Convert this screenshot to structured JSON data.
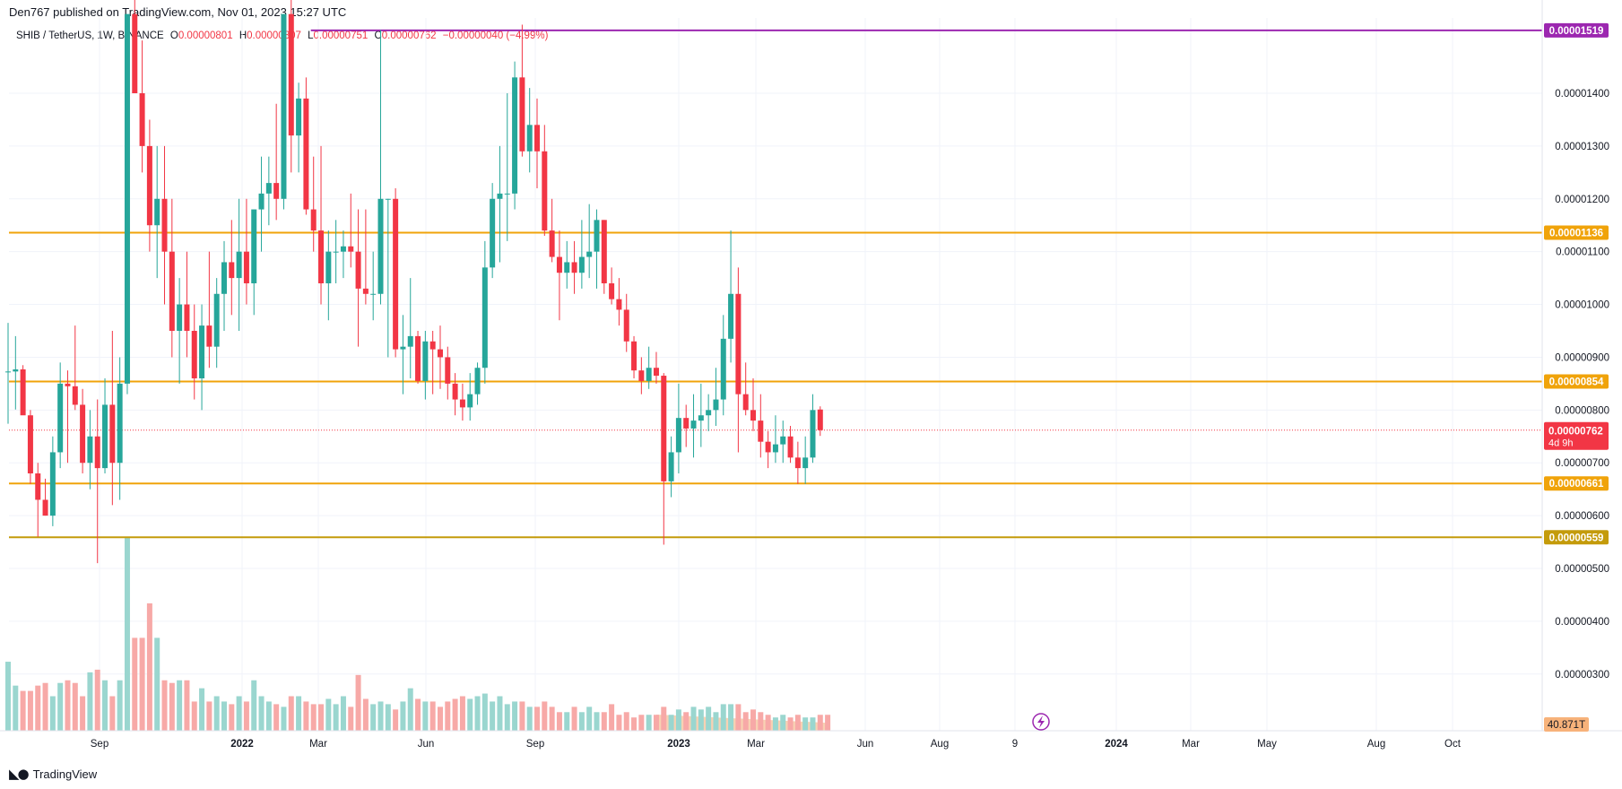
{
  "publisher_line": "Den767 published on TradingView.com, Nov 01, 2023 15:27 UTC",
  "footer": {
    "brand": "TradingView"
  },
  "legend": {
    "symbol": "SHIB / TetherUS, 1W, BINANCE",
    "o_label": "O",
    "o": "0.00000801",
    "h_label": "H",
    "h": "0.00000807",
    "l_label": "L",
    "l": "0.00000751",
    "c_label": "C",
    "c": "0.00000762",
    "change": "−0.00000040 (−4.99%)"
  },
  "colors": {
    "up": "#26a69a",
    "down": "#f23645",
    "volume_up": "#9ad6cf",
    "volume_down": "#f7a9a7",
    "level_orange": "#f0a30a",
    "level_gold": "#c49b0b",
    "level_purple": "#9c27b0",
    "price_tag": "#f23645",
    "grid": "#f0f3fa"
  },
  "chart_data": {
    "type": "candlestick",
    "timeframe": "1W",
    "price_axis": {
      "ylim": [
        2.3e-06,
        1.55e-05
      ],
      "ticks": [
        "0.00001400",
        "0.00001300",
        "0.00001200",
        "0.00001100",
        "0.00001000",
        "0.00000900",
        "0.00000800",
        "0.00000700",
        "0.00000600",
        "0.00000500",
        "0.00000400",
        "0.00000300"
      ]
    },
    "time_axis": {
      "ticks": [
        "Sep",
        "2022",
        "Mar",
        "Jun",
        "Sep",
        "2023",
        "Mar",
        "Jun",
        "Aug",
        "9",
        "2024",
        "Mar",
        "May",
        "Aug",
        "Oct"
      ],
      "bold_ticks": [
        "2022",
        "2023",
        "2024"
      ]
    },
    "horizontal_levels": [
      {
        "value": 1.519e-05,
        "label": "0.00001519",
        "color": "purple",
        "start_week": 41
      },
      {
        "value": 1.136e-05,
        "label": "0.00001136",
        "color": "orange"
      },
      {
        "value": 8.54e-06,
        "label": "0.00000854",
        "color": "orange"
      },
      {
        "value": 6.61e-06,
        "label": "0.00000661",
        "color": "orange"
      },
      {
        "value": 5.59e-06,
        "label": "0.00000559",
        "color": "gold"
      }
    ],
    "current_price": {
      "value": 7.62e-06,
      "label": "0.00000762",
      "countdown": "4d 9h"
    },
    "volume_label": "40.871T",
    "candles": [
      {
        "o": 8.73,
        "h": 9.65,
        "l": 7.74,
        "c": 8.73
      },
      {
        "o": 8.73,
        "h": 9.4,
        "l": 8.01,
        "c": 8.77
      },
      {
        "o": 8.77,
        "h": 8.85,
        "l": 7.95,
        "c": 7.9
      },
      {
        "o": 7.9,
        "h": 8.0,
        "l": 6.6,
        "c": 6.8
      },
      {
        "o": 6.8,
        "h": 7.0,
        "l": 5.6,
        "c": 6.3
      },
      {
        "o": 6.3,
        "h": 6.7,
        "l": 6.0,
        "c": 6.0
      },
      {
        "o": 6.0,
        "h": 7.5,
        "l": 5.8,
        "c": 7.2
      },
      {
        "o": 7.2,
        "h": 8.9,
        "l": 6.9,
        "c": 8.5
      },
      {
        "o": 8.5,
        "h": 8.75,
        "l": 7.0,
        "c": 8.45
      },
      {
        "o": 8.45,
        "h": 9.6,
        "l": 8.0,
        "c": 8.1
      },
      {
        "o": 8.1,
        "h": 8.4,
        "l": 6.8,
        "c": 7.0
      },
      {
        "o": 7.0,
        "h": 8.0,
        "l": 6.5,
        "c": 7.5
      },
      {
        "o": 7.5,
        "h": 8.2,
        "l": 5.1,
        "c": 6.9
      },
      {
        "o": 6.9,
        "h": 8.6,
        "l": 6.8,
        "c": 8.1
      },
      {
        "o": 8.1,
        "h": 9.5,
        "l": 6.2,
        "c": 7.0
      },
      {
        "o": 7.0,
        "h": 9.0,
        "l": 6.3,
        "c": 8.5
      },
      {
        "o": 8.5,
        "h": 15.5,
        "l": 8.3,
        "c": 15.5
      },
      {
        "o": 15.5,
        "h": 18.0,
        "l": 14.0,
        "c": 14.0
      },
      {
        "o": 14.0,
        "h": 15.0,
        "l": 12.5,
        "c": 13.0
      },
      {
        "o": 13.0,
        "h": 13.5,
        "l": 11.0,
        "c": 11.5
      },
      {
        "o": 11.5,
        "h": 13.0,
        "l": 10.5,
        "c": 12.0
      },
      {
        "o": 12.0,
        "h": 13.0,
        "l": 10.0,
        "c": 11.0
      },
      {
        "o": 11.0,
        "h": 12.0,
        "l": 9.0,
        "c": 9.5
      },
      {
        "o": 9.5,
        "h": 10.5,
        "l": 8.5,
        "c": 10.0
      },
      {
        "o": 10.0,
        "h": 11.0,
        "l": 9.0,
        "c": 9.5
      },
      {
        "o": 9.5,
        "h": 10.0,
        "l": 8.2,
        "c": 8.6
      },
      {
        "o": 8.6,
        "h": 10.0,
        "l": 8.0,
        "c": 9.6
      },
      {
        "o": 9.6,
        "h": 11.0,
        "l": 8.8,
        "c": 9.2
      },
      {
        "o": 9.2,
        "h": 10.5,
        "l": 8.8,
        "c": 10.2
      },
      {
        "o": 10.2,
        "h": 11.2,
        "l": 9.5,
        "c": 10.8
      },
      {
        "o": 10.8,
        "h": 11.6,
        "l": 9.8,
        "c": 10.5
      },
      {
        "o": 10.5,
        "h": 12.0,
        "l": 9.5,
        "c": 11.0
      },
      {
        "o": 11.0,
        "h": 12.0,
        "l": 10.0,
        "c": 10.4
      },
      {
        "o": 10.4,
        "h": 11.8,
        "l": 9.8,
        "c": 11.8
      },
      {
        "o": 11.8,
        "h": 12.8,
        "l": 11.0,
        "c": 12.1
      },
      {
        "o": 12.1,
        "h": 12.8,
        "l": 11.5,
        "c": 12.3
      },
      {
        "o": 12.3,
        "h": 13.8,
        "l": 11.6,
        "c": 12.0
      },
      {
        "o": 12.0,
        "h": 15.5,
        "l": 11.8,
        "c": 15.5
      },
      {
        "o": 15.5,
        "h": 16.0,
        "l": 12.5,
        "c": 13.2
      },
      {
        "o": 13.2,
        "h": 14.2,
        "l": 12.5,
        "c": 13.9
      },
      {
        "o": 13.9,
        "h": 14.3,
        "l": 11.7,
        "c": 11.8
      },
      {
        "o": 11.8,
        "h": 12.8,
        "l": 11.0,
        "c": 11.4
      },
      {
        "o": 11.4,
        "h": 13.0,
        "l": 10.0,
        "c": 10.4
      },
      {
        "o": 10.4,
        "h": 11.4,
        "l": 9.7,
        "c": 11.0
      },
      {
        "o": 11.0,
        "h": 11.6,
        "l": 10.4,
        "c": 11.0
      },
      {
        "o": 11.0,
        "h": 11.4,
        "l": 10.5,
        "c": 11.1
      },
      {
        "o": 11.1,
        "h": 12.1,
        "l": 10.7,
        "c": 11.0
      },
      {
        "o": 11.0,
        "h": 11.8,
        "l": 9.2,
        "c": 10.3
      },
      {
        "o": 10.3,
        "h": 11.8,
        "l": 10.0,
        "c": 10.2
      },
      {
        "o": 10.2,
        "h": 11.0,
        "l": 9.7,
        "c": 10.2
      },
      {
        "o": 10.2,
        "h": 15.2,
        "l": 10.0,
        "c": 12.0
      },
      {
        "o": 12.0,
        "h": 12.0,
        "l": 9.0,
        "c": 12.0
      },
      {
        "o": 12.0,
        "h": 12.2,
        "l": 9.0,
        "c": 9.15
      },
      {
        "o": 9.15,
        "h": 9.8,
        "l": 8.3,
        "c": 9.2
      },
      {
        "o": 9.2,
        "h": 10.5,
        "l": 8.6,
        "c": 9.4
      },
      {
        "o": 9.4,
        "h": 9.5,
        "l": 8.5,
        "c": 8.55
      },
      {
        "o": 8.55,
        "h": 9.5,
        "l": 8.2,
        "c": 9.3
      },
      {
        "o": 9.3,
        "h": 9.5,
        "l": 8.3,
        "c": 9.15
      },
      {
        "o": 9.15,
        "h": 9.6,
        "l": 8.4,
        "c": 9.0
      },
      {
        "o": 9.0,
        "h": 9.2,
        "l": 8.2,
        "c": 8.5
      },
      {
        "o": 8.5,
        "h": 8.7,
        "l": 7.9,
        "c": 8.2
      },
      {
        "o": 8.2,
        "h": 8.5,
        "l": 7.8,
        "c": 8.05
      },
      {
        "o": 8.05,
        "h": 8.7,
        "l": 7.8,
        "c": 8.3
      },
      {
        "o": 8.3,
        "h": 8.9,
        "l": 8.1,
        "c": 8.8
      },
      {
        "o": 8.8,
        "h": 11.2,
        "l": 8.5,
        "c": 10.7
      },
      {
        "o": 10.7,
        "h": 12.3,
        "l": 10.5,
        "c": 12.0
      },
      {
        "o": 12.0,
        "h": 13.0,
        "l": 10.8,
        "c": 12.1
      },
      {
        "o": 12.1,
        "h": 14.0,
        "l": 11.2,
        "c": 12.1
      },
      {
        "o": 12.1,
        "h": 14.6,
        "l": 11.8,
        "c": 14.3
      },
      {
        "o": 14.3,
        "h": 15.3,
        "l": 12.8,
        "c": 12.9
      },
      {
        "o": 12.9,
        "h": 14.1,
        "l": 12.5,
        "c": 13.4
      },
      {
        "o": 13.4,
        "h": 13.9,
        "l": 12.2,
        "c": 12.9
      },
      {
        "o": 12.9,
        "h": 13.4,
        "l": 11.3,
        "c": 11.4
      },
      {
        "o": 11.4,
        "h": 12.0,
        "l": 10.8,
        "c": 10.9
      },
      {
        "o": 10.9,
        "h": 11.4,
        "l": 9.7,
        "c": 10.6
      },
      {
        "o": 10.6,
        "h": 11.2,
        "l": 10.3,
        "c": 10.8
      },
      {
        "o": 10.8,
        "h": 11.2,
        "l": 10.2,
        "c": 10.6
      },
      {
        "o": 10.6,
        "h": 11.6,
        "l": 10.3,
        "c": 10.9
      },
      {
        "o": 10.9,
        "h": 11.9,
        "l": 10.5,
        "c": 11.0
      },
      {
        "o": 11.0,
        "h": 11.8,
        "l": 10.3,
        "c": 11.6
      },
      {
        "o": 11.6,
        "h": 11.6,
        "l": 10.2,
        "c": 10.4
      },
      {
        "o": 10.4,
        "h": 10.7,
        "l": 10.0,
        "c": 10.1
      },
      {
        "o": 10.1,
        "h": 10.5,
        "l": 9.6,
        "c": 9.9
      },
      {
        "o": 9.9,
        "h": 10.2,
        "l": 9.1,
        "c": 9.3
      },
      {
        "o": 9.3,
        "h": 9.4,
        "l": 8.6,
        "c": 8.75
      },
      {
        "o": 8.75,
        "h": 9.0,
        "l": 8.3,
        "c": 8.55
      },
      {
        "o": 8.55,
        "h": 9.2,
        "l": 8.4,
        "c": 8.8
      },
      {
        "o": 8.8,
        "h": 9.1,
        "l": 8.5,
        "c": 8.65
      },
      {
        "o": 8.65,
        "h": 8.7,
        "l": 5.45,
        "c": 6.65
      },
      {
        "o": 6.65,
        "h": 7.5,
        "l": 6.35,
        "c": 7.2
      },
      {
        "o": 7.2,
        "h": 8.5,
        "l": 6.8,
        "c": 7.85
      },
      {
        "o": 7.85,
        "h": 8.1,
        "l": 7.3,
        "c": 7.65
      },
      {
        "o": 7.65,
        "h": 8.3,
        "l": 7.1,
        "c": 7.8
      },
      {
        "o": 7.8,
        "h": 8.5,
        "l": 7.3,
        "c": 7.9
      },
      {
        "o": 7.9,
        "h": 8.3,
        "l": 7.6,
        "c": 8.0
      },
      {
        "o": 8.0,
        "h": 8.8,
        "l": 7.7,
        "c": 8.2
      },
      {
        "o": 8.2,
        "h": 9.8,
        "l": 7.9,
        "c": 9.35
      },
      {
        "o": 9.35,
        "h": 11.4,
        "l": 8.9,
        "c": 10.2
      },
      {
        "o": 10.2,
        "h": 10.7,
        "l": 7.2,
        "c": 8.3
      },
      {
        "o": 8.3,
        "h": 8.9,
        "l": 7.9,
        "c": 8.0
      },
      {
        "o": 8.0,
        "h": 8.6,
        "l": 7.6,
        "c": 7.8
      },
      {
        "o": 7.8,
        "h": 8.3,
        "l": 7.1,
        "c": 7.4
      },
      {
        "o": 7.4,
        "h": 7.6,
        "l": 6.9,
        "c": 7.2
      },
      {
        "o": 7.2,
        "h": 7.9,
        "l": 7.0,
        "c": 7.35
      },
      {
        "o": 7.35,
        "h": 7.8,
        "l": 7.0,
        "c": 7.5
      },
      {
        "o": 7.5,
        "h": 7.7,
        "l": 7.0,
        "c": 7.1
      },
      {
        "o": 7.1,
        "h": 7.4,
        "l": 6.6,
        "c": 6.9
      },
      {
        "o": 6.9,
        "h": 7.5,
        "l": 6.6,
        "c": 7.1
      },
      {
        "o": 7.1,
        "h": 8.3,
        "l": 7.0,
        "c": 8.0
      },
      {
        "o": 8.01,
        "h": 8.07,
        "l": 7.51,
        "c": 7.62
      }
    ],
    "volumes": [
      2.6,
      1.7,
      1.5,
      1.5,
      1.7,
      1.8,
      1.3,
      1.8,
      1.9,
      1.8,
      1.3,
      2.2,
      2.3,
      1.9,
      1.3,
      1.9,
      7.3,
      3.5,
      3.5,
      4.8,
      3.5,
      1.9,
      1.8,
      1.9,
      1.9,
      1.1,
      1.6,
      1.1,
      1.3,
      1.1,
      1.0,
      1.3,
      1.1,
      1.9,
      1.3,
      1.1,
      1.0,
      0.9,
      1.3,
      1.3,
      1.1,
      1.0,
      1.0,
      1.2,
      1.0,
      1.3,
      0.9,
      2.1,
      1.2,
      1.0,
      1.1,
      1.0,
      0.8,
      1.1,
      1.6,
      1.2,
      1.1,
      1.1,
      0.9,
      1.1,
      1.2,
      1.3,
      1.2,
      1.3,
      1.4,
      1.1,
      1.3,
      1.0,
      1.1,
      1.1,
      0.9,
      0.9,
      1.1,
      0.9,
      0.7,
      0.7,
      0.9,
      0.7,
      0.9,
      0.7,
      0.7,
      1.0,
      0.6,
      0.7,
      0.5,
      0.6,
      0.6,
      0.6,
      0.9,
      0.6,
      0.8,
      0.7,
      0.9,
      0.8,
      0.9,
      0.7,
      1.0,
      1.0,
      1.0,
      0.7,
      0.8,
      0.7,
      0.6,
      0.5,
      0.6,
      0.5,
      0.6,
      0.5,
      0.5,
      0.6,
      0.6
    ]
  }
}
